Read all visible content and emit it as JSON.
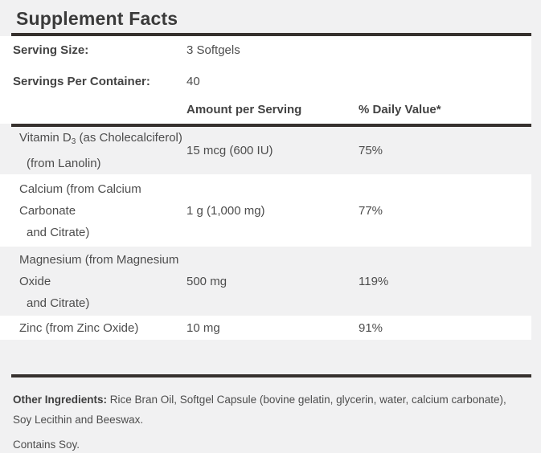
{
  "title": "Supplement Facts",
  "serving": {
    "size_label": "Serving Size:",
    "size_value": "3 Softgels",
    "per_container_label": "Servings Per Container:",
    "per_container_value": "40"
  },
  "columns": {
    "amount_header": "Amount per Serving",
    "daily_value_header": "% Daily Value*"
  },
  "rows": [
    {
      "name_pre": "Vitamin D",
      "name_sub": "3",
      "name_post": " (as Cholecalciferol)",
      "name_line2": "(from Lanolin)",
      "amount": "15 mcg (600 IU)",
      "daily_value": "75%"
    },
    {
      "name_line1": "Calcium (from Calcium",
      "name_line2": "Carbonate",
      "name_line3": "and Citrate)",
      "amount": "1 g (1,000 mg)",
      "daily_value": "77%"
    },
    {
      "name_line1": "Magnesium (from Magnesium",
      "name_line2": "Oxide",
      "name_line3": "and Citrate)",
      "amount": "500 mg",
      "daily_value": "119%"
    },
    {
      "name_line1": "Zinc (from Zinc Oxide)",
      "amount": "10 mg",
      "daily_value": "91%"
    }
  ],
  "footer": {
    "other_ingredients_label": "Other Ingredients:",
    "other_ingredients_text": " Rice Bran Oil, Softgel Capsule (bovine gelatin, glycerin, water, calcium carbonate), Soy Lecithin and Beeswax.",
    "contains": "Contains Soy."
  },
  "colors": {
    "page_background": "#f1f1f2",
    "row_white": "#ffffff",
    "row_alt": "#f1f1f2",
    "rule": "#36312e",
    "text": "#4d4d4d",
    "bold_text": "#3a3a3a"
  }
}
